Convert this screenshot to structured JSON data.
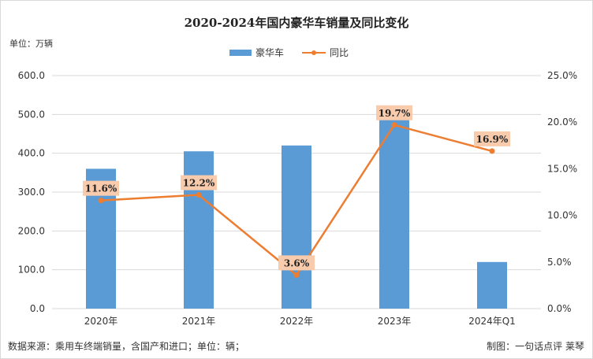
{
  "header": {
    "title": "2020-2024年国内豪华车销量及同比变化",
    "unit_label": "单位：万辆"
  },
  "footer": {
    "source": "数据来源：乘用车终端销量，含国产和进口；单位：辆；",
    "credit": "制图：一句话点评  莱琴"
  },
  "colors": {
    "bar": "#5b9bd5",
    "line": "#ed7d31",
    "label_bg": "#f8cbad"
  },
  "chart_data": {
    "type": "bar+line",
    "categories": [
      "2020年",
      "2021年",
      "2022年",
      "2023年",
      "2024年Q1"
    ],
    "series": [
      {
        "name": "豪华车",
        "type": "bar",
        "axis": "left",
        "values": [
          360,
          405,
          420,
          503,
          120
        ]
      },
      {
        "name": "同比",
        "type": "line",
        "axis": "right",
        "values": [
          11.6,
          12.2,
          3.6,
          19.7,
          16.9
        ],
        "data_labels": [
          "11.6%",
          "12.2%",
          "3.6%",
          "19.7%",
          "16.9%"
        ],
        "label_points": [
          0,
          1,
          2,
          3,
          4
        ]
      }
    ],
    "left_axis": {
      "ylim": [
        0,
        600
      ],
      "ticks": [
        "0.0",
        "100.0",
        "200.0",
        "300.0",
        "400.0",
        "500.0",
        "600.0"
      ]
    },
    "right_axis": {
      "ylim": [
        0,
        25
      ],
      "ticks": [
        "0.0%",
        "5.0%",
        "10.0%",
        "15.0%",
        "20.0%",
        "25.0%"
      ]
    },
    "grid": true,
    "legend": "top-center"
  }
}
